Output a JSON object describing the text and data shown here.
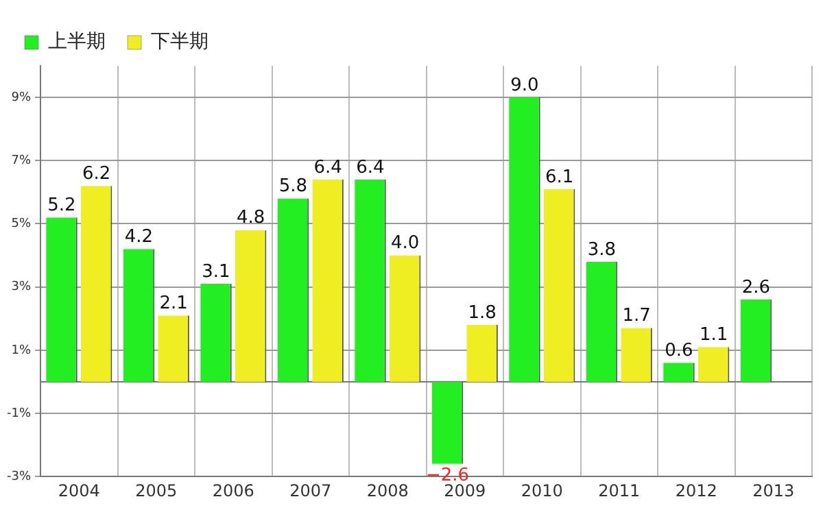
{
  "chart_data": {
    "type": "bar",
    "categories": [
      "2004",
      "2005",
      "2006",
      "2007",
      "2008",
      "2009",
      "2010",
      "2011",
      "2012",
      "2013"
    ],
    "series": [
      {
        "name": "上半期",
        "color": "#22ee22",
        "values": [
          5.2,
          4.2,
          3.1,
          5.8,
          6.4,
          -2.6,
          9.0,
          3.8,
          0.6,
          2.6
        ],
        "value_labels": [
          "5.2",
          "4.2",
          "3.1",
          "5.8",
          "6.4",
          "−2.6",
          "9.0",
          "3.8",
          "0.6",
          "2.6"
        ]
      },
      {
        "name": "下半期",
        "color": "#eeee22",
        "values": [
          6.2,
          2.1,
          4.8,
          6.4,
          4.0,
          1.8,
          6.1,
          1.7,
          1.1,
          null
        ],
        "value_labels": [
          "6.2",
          "2.1",
          "4.8",
          "6.4",
          "4.0",
          "1.8",
          "6.1",
          "1.7",
          "1.1",
          null
        ]
      }
    ],
    "ylim": [
      -3,
      10
    ],
    "yticks": [
      {
        "value": -3,
        "label": "-3%"
      },
      {
        "value": -1,
        "label": "-1%"
      },
      {
        "value": 1,
        "label": "1%"
      },
      {
        "value": 3,
        "label": "3%"
      },
      {
        "value": 5,
        "label": "5%"
      },
      {
        "value": 7,
        "label": "7%"
      },
      {
        "value": 9,
        "label": "9%"
      }
    ],
    "grid": true,
    "legend": "top left"
  }
}
